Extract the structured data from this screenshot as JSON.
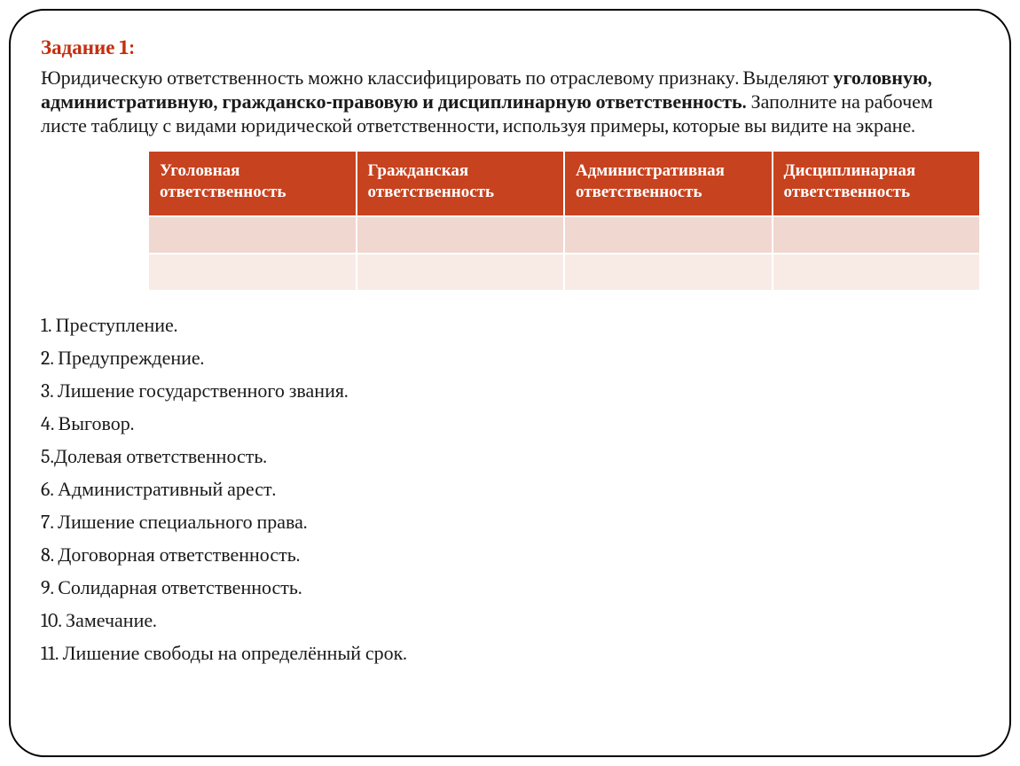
{
  "title": "Задание 1:",
  "intro": {
    "part1": "Юридическую ответственность можно классифицировать по отраслевому признаку. Выделяют ",
    "boldPart": "уголовную, административную, гражданско-правовую и дисциплинарную ответственность.",
    "part2": " Заполните на рабочем листе таблицу с видами юридической ответственности, используя примеры, которые вы видите на экране."
  },
  "table": {
    "headers": [
      "Уголовная ответственность",
      "Гражданская ответственность",
      "Административная ответственность",
      "Дисциплинарная ответственность"
    ],
    "header_bg": "#c7421e",
    "header_text_color": "#ffffff",
    "row_colors": [
      "#f0d7cf",
      "#f8ebe6"
    ],
    "border_color": "#ffffff",
    "column_count": 4,
    "blank_row_count": 2
  },
  "list": [
    "1. Преступление.",
    "2. Предупреждение.",
    "3. Лишение государственного звания.",
    "4. Выговор.",
    "5.Долевая ответственность.",
    "6. Административный арест.",
    "7. Лишение специального права.",
    "8. Договорная ответственность.",
    "9. Солидарная ответственность.",
    "10. Замечание.",
    "11. Лишение свободы на определённый срок."
  ],
  "colors": {
    "title": "#c42e0e",
    "text": "#1a1a1a",
    "card_border": "#000000",
    "background": "#ffffff"
  },
  "typography": {
    "title_fontsize": 23,
    "body_fontsize": 22,
    "header_fontsize": 19,
    "font_family": "Cambria / Georgia serif"
  }
}
